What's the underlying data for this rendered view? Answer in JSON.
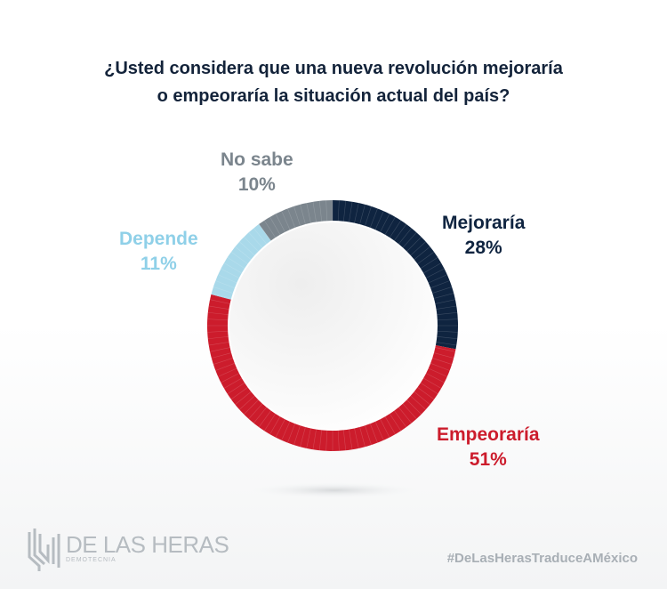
{
  "chart_data": {
    "type": "pie",
    "title_lines": [
      "¿Usted considera que una nueva revolución mejoraría",
      "o empeoraría la situación actual del país?"
    ],
    "slices": [
      {
        "label": "Mejoraría",
        "value": 28,
        "display": "28%",
        "color": "#0f2440"
      },
      {
        "label": "Empeoraría",
        "value": 51,
        "display": "51%",
        "color": "#cc1c2c"
      },
      {
        "label": "Depende",
        "value": 11,
        "display": "11%",
        "color": "#a9d9ea"
      },
      {
        "label": "No sabe",
        "value": 10,
        "display": "10%",
        "color": "#7b858d"
      }
    ]
  },
  "footer": {
    "brand": "DE LAS HERAS",
    "brand_sub": "DEMOTECNIA",
    "hashtag": "#DeLasHerasTraduceAMéxico"
  }
}
